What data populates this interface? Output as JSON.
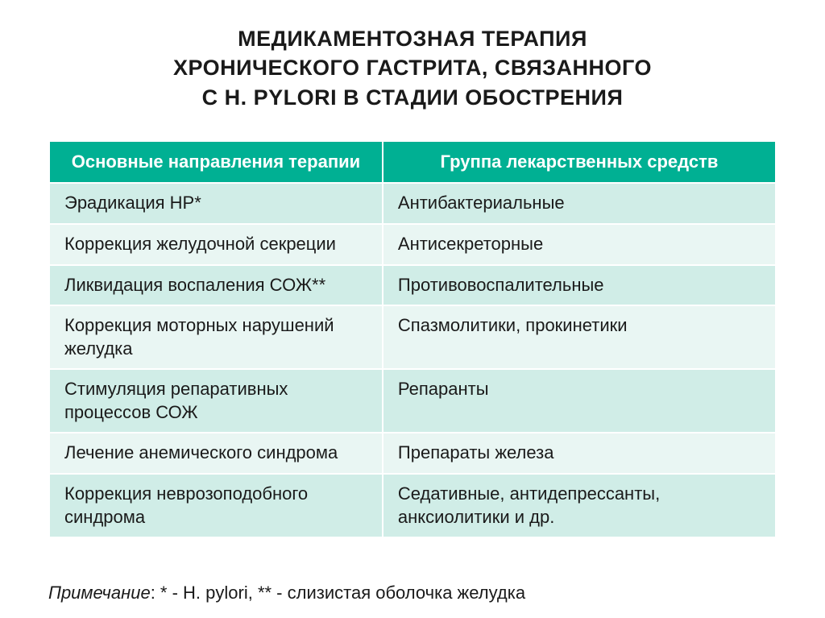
{
  "title_lines": [
    "МЕДИКАМЕНТОЗНАЯ ТЕРАПИЯ",
    "ХРОНИЧЕСКОГО ГАСТРИТА, СВЯЗАННОГО",
    "С H. PYLORI  В СТАДИИ ОБОСТРЕНИЯ"
  ],
  "table": {
    "columns": [
      "Основные направления терапии",
      "Группа лекарственных средств"
    ],
    "rows": [
      [
        "Эрадикация НР*",
        "Антибактериальные"
      ],
      [
        "Коррекция желудочной секреции",
        "Антисекреторные"
      ],
      [
        "Ликвидация воспаления СОЖ**",
        "Противовоспалительные"
      ],
      [
        "Коррекция моторных нарушений желудка",
        "Спазмолитики, прокинетики"
      ],
      [
        "Стимуляция репаративных процессов СОЖ",
        "Репаранты"
      ],
      [
        "Лечение анемического синдрома",
        "Препараты железа"
      ],
      [
        "Коррекция неврозоподобного синдрома",
        "Седативные, антидепрессанты, анксиолитики и др."
      ]
    ],
    "header_bg": "#00b093",
    "header_fg": "#ffffff",
    "row_odd_bg": "#d0ede7",
    "row_even_bg": "#e9f6f3",
    "font_size_header": 22,
    "font_size_cell": 22
  },
  "footnote": {
    "label": "Примечание",
    "text": ": * - H. pylori, ** - слизистая оболочка желудка"
  }
}
